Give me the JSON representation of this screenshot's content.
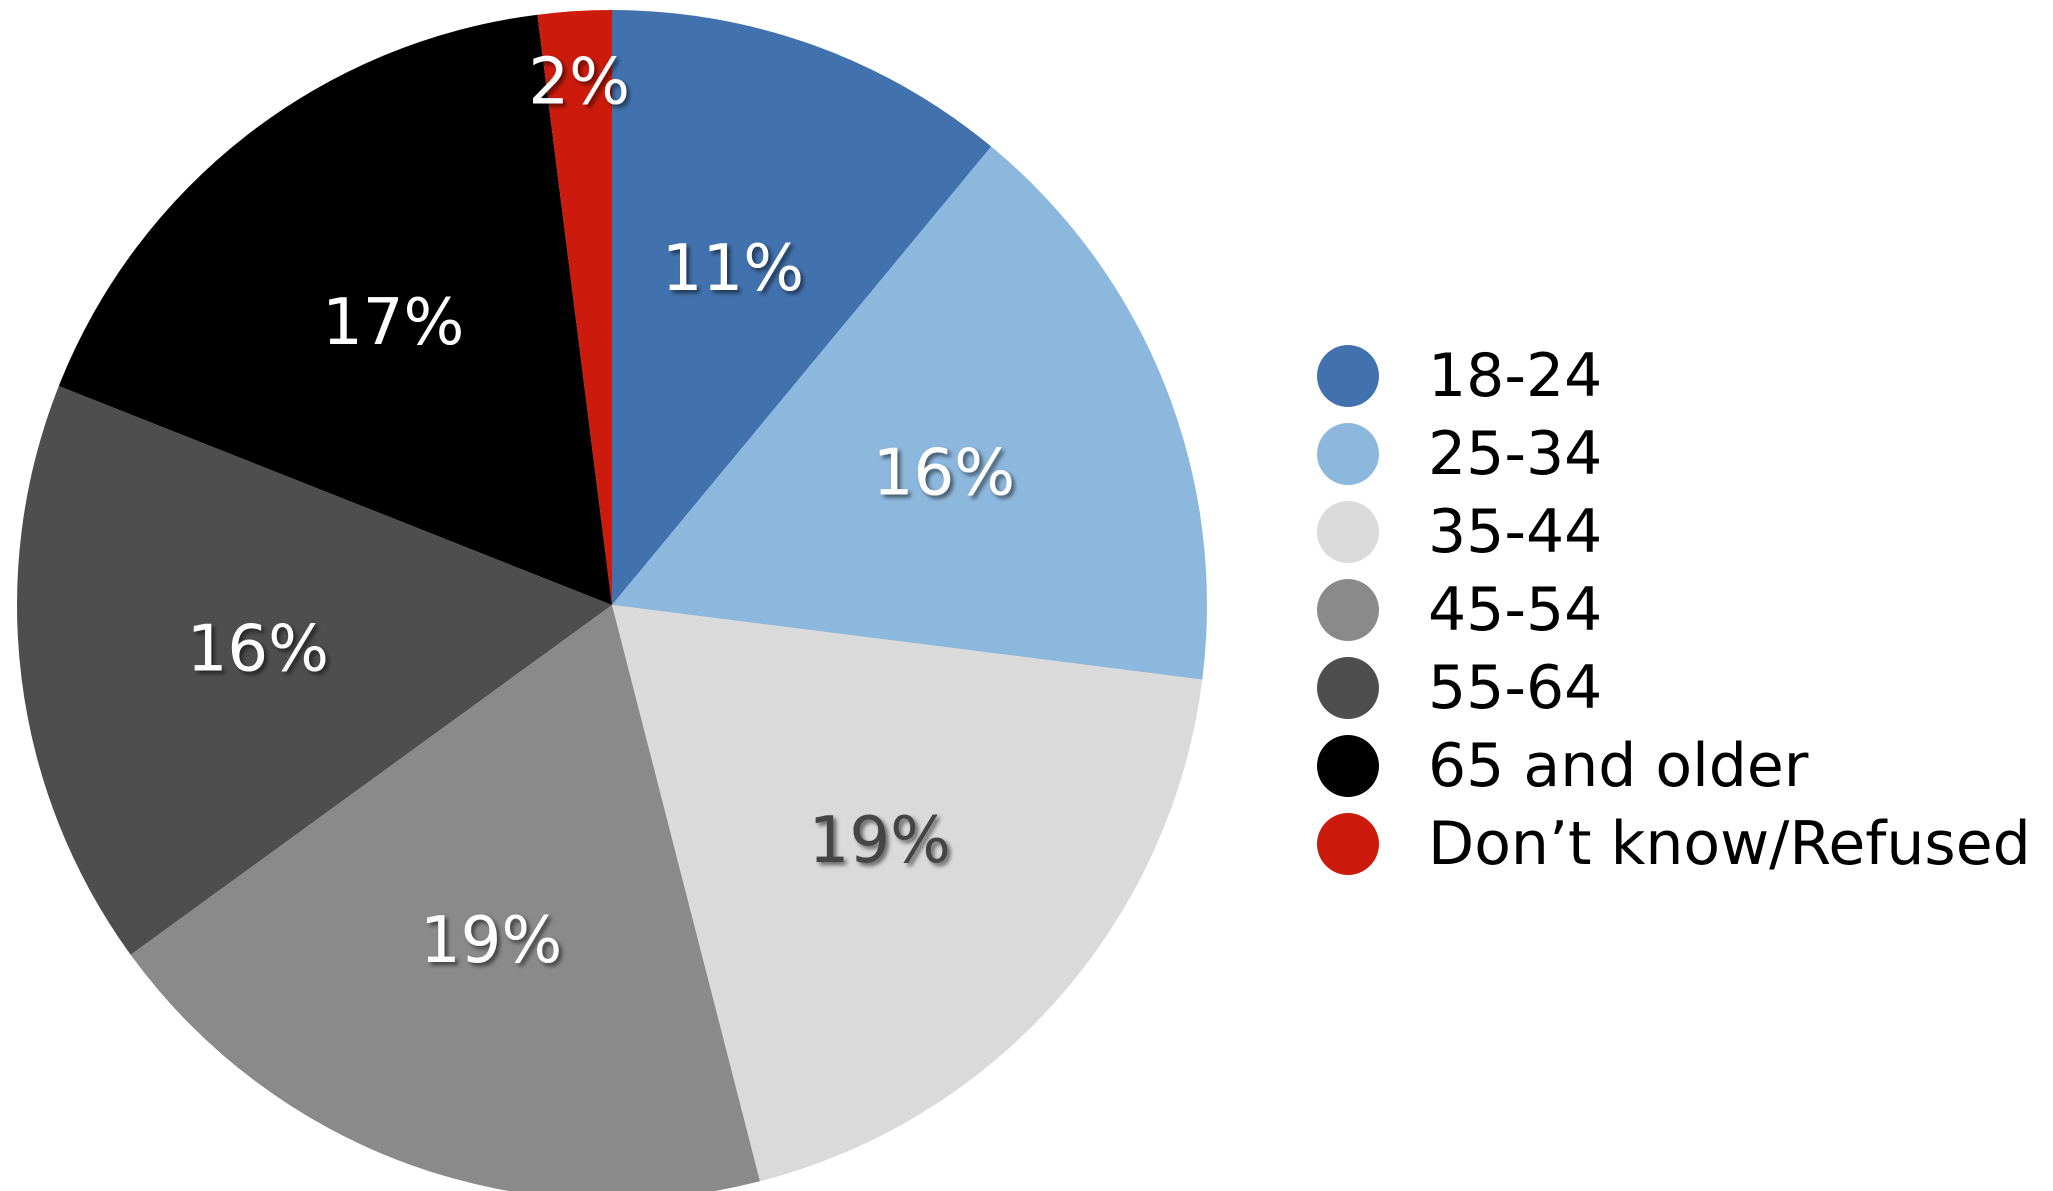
{
  "chart_data": {
    "type": "pie",
    "title": "",
    "categories": [
      "18-24",
      "25-34",
      "35-44",
      "45-54",
      "55-64",
      "65 and older",
      "Don’t know/Refused"
    ],
    "values": [
      11,
      16,
      19,
      19,
      16,
      17,
      2
    ],
    "labels": [
      "11%",
      "16%",
      "19%",
      "19%",
      "16%",
      "17%",
      "2%"
    ],
    "colors": [
      "#4272AE",
      "#8DB8DD",
      "#DADADA",
      "#8A8A8A",
      "#4E4E4E",
      "#000000",
      "#CC1B0D"
    ],
    "label_colors": [
      "#FFFFFF",
      "#FFFFFF",
      "#444444",
      "#FFFFFF",
      "#FFFFFF",
      "#FFFFFF",
      "#FFFFFF"
    ],
    "start_angle_deg": 0,
    "direction": "clockwise",
    "legend_position": "right"
  }
}
